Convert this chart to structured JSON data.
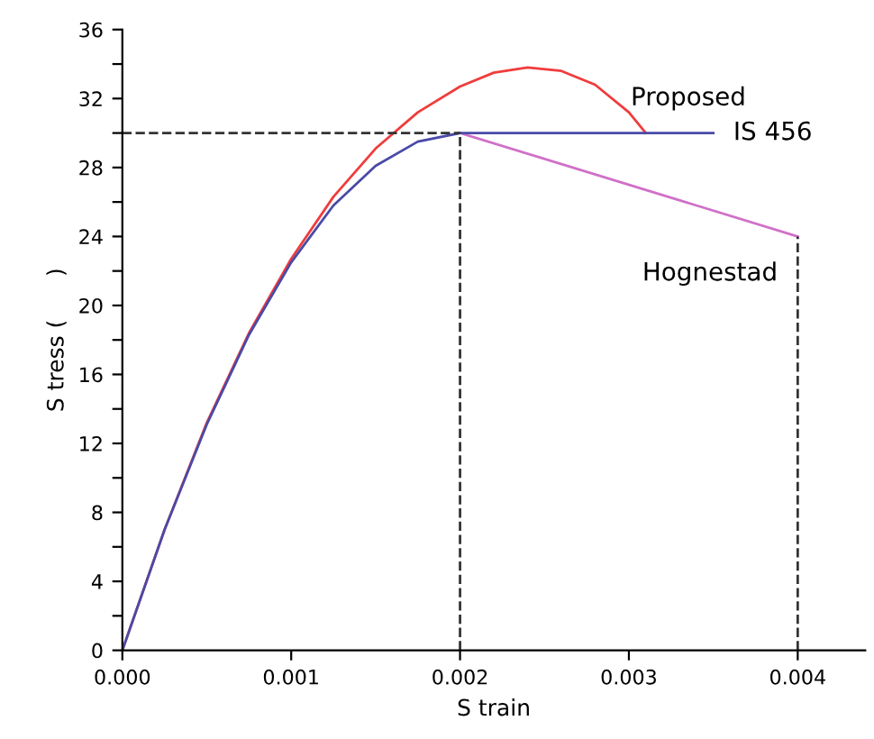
{
  "chart_data": {
    "type": "line",
    "xlabel": "S train",
    "ylabel": "S tress (      )",
    "xlim": [
      0,
      0.0044
    ],
    "ylim": [
      0,
      36
    ],
    "xticks": [
      {
        "value": 0,
        "label": "0.000"
      },
      {
        "value": 0.001,
        "label": "0.001"
      },
      {
        "value": 0.002,
        "label": "0.002"
      },
      {
        "value": 0.003,
        "label": "0.003"
      },
      {
        "value": 0.004,
        "label": "0.004"
      }
    ],
    "yticks": [
      0,
      {
        "value": 2,
        "label": null
      },
      4,
      {
        "value": 6,
        "label": null
      },
      8,
      {
        "value": 10,
        "label": null
      },
      12,
      {
        "value": 14,
        "label": null
      },
      16,
      {
        "value": 18,
        "label": null
      },
      20,
      {
        "value": 22,
        "label": null
      },
      24,
      {
        "value": 26,
        "label": null
      },
      28,
      {
        "value": 30,
        "label": null
      },
      32,
      {
        "value": 34,
        "label": null
      },
      36
    ],
    "grid": false,
    "legend": false,
    "marker": "none",
    "series": [
      {
        "name": "Proposed",
        "color": "#f03c3c",
        "line_style": "solid",
        "x": [
          0,
          0.00025,
          0.0005,
          0.00075,
          0.001,
          0.00125,
          0.0015,
          0.00175,
          0.002,
          0.0022,
          0.0024,
          0.0026,
          0.0028,
          0.003,
          0.0031
        ],
        "values": [
          0,
          7.0,
          13.2,
          18.4,
          22.7,
          26.3,
          29.1,
          31.2,
          32.7,
          33.5,
          33.8,
          33.6,
          32.8,
          31.2,
          30
        ]
      },
      {
        "name": "Hognestad",
        "color": "#d070c8",
        "line_style": "solid",
        "x": [
          0.002,
          0.004
        ],
        "values": [
          30,
          24
        ]
      },
      {
        "name": "IS 456",
        "color": "#4a4aa8",
        "line_style": "solid",
        "x": [
          0,
          0.00025,
          0.0005,
          0.00075,
          0.001,
          0.00125,
          0.0015,
          0.00175,
          0.002,
          0.0035
        ],
        "values": [
          0,
          7.0,
          13.1,
          18.3,
          22.5,
          25.8,
          28.1,
          29.5,
          30,
          30
        ]
      },
      {
        "color": "#333333",
        "line_style": "dashed",
        "x": [
          0,
          0.002
        ],
        "values": [
          30,
          30
        ]
      },
      {
        "color": "#333333",
        "line_style": "dashed",
        "x": [
          0.002,
          0.002
        ],
        "values": [
          0,
          30
        ]
      },
      {
        "color": "#333333",
        "line_style": "dashed",
        "x": [
          0.004,
          0.004
        ],
        "values": [
          0,
          24
        ]
      }
    ]
  }
}
